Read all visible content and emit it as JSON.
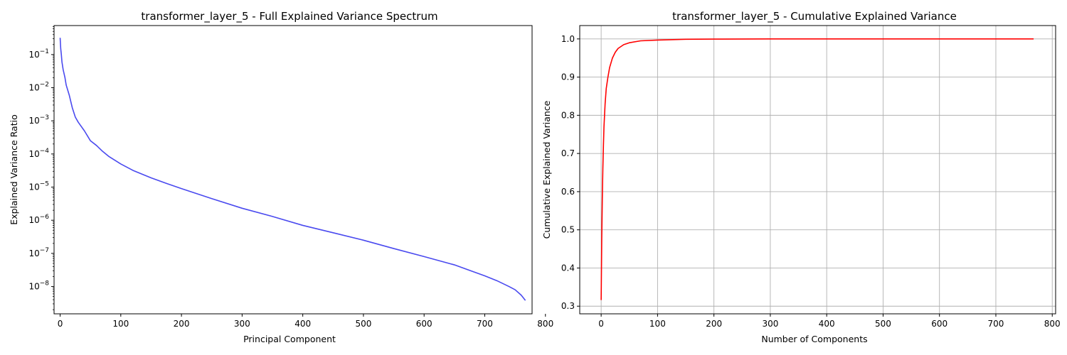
{
  "chart_data": [
    {
      "type": "line",
      "title": "transformer_layer_5 - Full Explained Variance Spectrum",
      "xlabel": "Principal Component",
      "ylabel": "Explained Variance Ratio",
      "yscale": "log",
      "grid": false,
      "xlim": [
        -10,
        778
      ],
      "ylim": [
        1.5e-09,
        0.75
      ],
      "xticks": [
        0,
        100,
        200,
        300,
        400,
        500,
        600,
        700,
        800
      ],
      "yticks": [
        1e-08,
        1e-07,
        1e-06,
        1e-05,
        0.0001,
        0.001,
        0.01,
        0.1
      ],
      "ytick_labels": [
        {
          "base": "10",
          "exp": "−8"
        },
        {
          "base": "10",
          "exp": "−7"
        },
        {
          "base": "10",
          "exp": "−6"
        },
        {
          "base": "10",
          "exp": "−5"
        },
        {
          "base": "10",
          "exp": "−4"
        },
        {
          "base": "10",
          "exp": "−3"
        },
        {
          "base": "10",
          "exp": "−2"
        },
        {
          "base": "10",
          "exp": "−1"
        }
      ],
      "series": [
        {
          "color": "#4a4aef",
          "x": [
            0,
            1,
            2,
            3,
            5,
            8,
            10,
            15,
            20,
            25,
            30,
            40,
            50,
            60,
            70,
            80,
            100,
            120,
            150,
            175,
            200,
            250,
            300,
            350,
            400,
            450,
            500,
            550,
            600,
            650,
            700,
            720,
            740,
            750,
            760,
            767
          ],
          "y": [
            0.32,
            0.15,
            0.1,
            0.06,
            0.035,
            0.02,
            0.012,
            0.006,
            0.0025,
            0.0013,
            0.0009,
            0.0005,
            0.00025,
            0.00018,
            0.00012,
            8.5e-05,
            5e-05,
            3.2e-05,
            1.9e-05,
            1.3e-05,
            9e-06,
            4.5e-06,
            2.3e-06,
            1.3e-06,
            7e-07,
            4.2e-07,
            2.5e-07,
            1.4e-07,
            8e-08,
            4.5e-08,
            2.1e-08,
            1.5e-08,
            1e-08,
            8e-09,
            5.5e-09,
            3.8e-09
          ]
        }
      ]
    },
    {
      "type": "line",
      "title": "transformer_layer_5 - Cumulative Explained Variance",
      "xlabel": "Number of Components",
      "ylabel": "Cumulative Explained Variance",
      "yscale": "linear",
      "grid": true,
      "xlim": [
        -38,
        806
      ],
      "ylim": [
        0.28,
        1.035
      ],
      "xticks": [
        0,
        100,
        200,
        300,
        400,
        500,
        600,
        700,
        800
      ],
      "yticks": [
        0.3,
        0.4,
        0.5,
        0.6,
        0.7,
        0.8,
        0.9,
        1.0
      ],
      "ytick_labels": [
        "0.3",
        "0.4",
        "0.5",
        "0.6",
        "0.7",
        "0.8",
        "0.9",
        "1.0"
      ],
      "series": [
        {
          "color": "#ff0000",
          "x": [
            0,
            1,
            2,
            3,
            4,
            5,
            7,
            9,
            12,
            15,
            20,
            25,
            30,
            40,
            50,
            70,
            100,
            150,
            200,
            300,
            400,
            500,
            600,
            767
          ],
          "y": [
            0.316,
            0.47,
            0.58,
            0.66,
            0.72,
            0.77,
            0.83,
            0.87,
            0.9,
            0.925,
            0.95,
            0.965,
            0.975,
            0.985,
            0.99,
            0.995,
            0.997,
            0.999,
            0.9995,
            1.0,
            1.0,
            1.0,
            1.0,
            1.0
          ]
        }
      ]
    }
  ]
}
